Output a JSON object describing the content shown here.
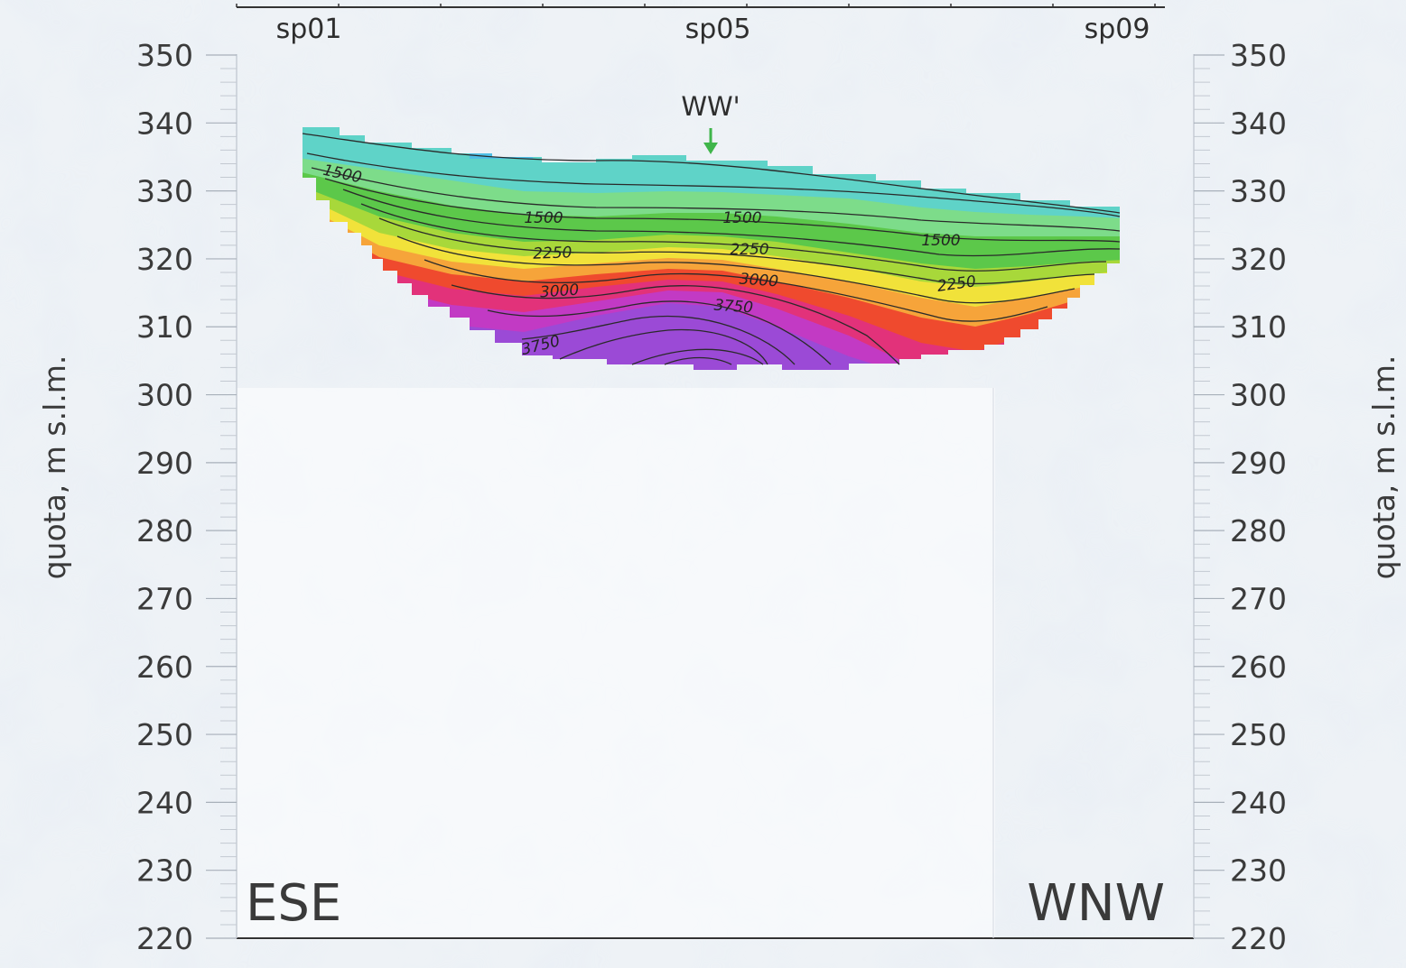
{
  "chart_data": {
    "type": "heatmap",
    "description_units": "velocity contours",
    "ylabel_left": "quota, m s.l.m.",
    "ylabel_right": "quota, m s.l.m.",
    "ylim": [
      220,
      350
    ],
    "yticks": [
      350,
      340,
      330,
      320,
      310,
      300,
      290,
      280,
      270,
      260,
      250,
      240,
      230,
      220
    ],
    "ytick_labels": [
      "350",
      "340",
      "330",
      "320",
      "310",
      "300",
      "290",
      "280",
      "270",
      "260",
      "250",
      "240",
      "230",
      "220"
    ],
    "stations": [
      "sp01",
      "sp05",
      "sp09"
    ],
    "marker": {
      "label": "WW'",
      "color": "#3fb54a"
    },
    "direction_left": "ESE",
    "direction_right": "WNW",
    "contour_levels": [
      1500,
      2250,
      3000,
      3750
    ],
    "contour_labels": [
      {
        "text": "1500",
        "value": 1500
      },
      {
        "text": "1500",
        "value": 1500
      },
      {
        "text": "1500",
        "value": 1500
      },
      {
        "text": "1500",
        "value": 1500
      },
      {
        "text": "2250",
        "value": 2250
      },
      {
        "text": "2250",
        "value": 2250
      },
      {
        "text": "2250",
        "value": 2250
      },
      {
        "text": "3000",
        "value": 3000
      },
      {
        "text": "3000",
        "value": 3000
      },
      {
        "text": "3750",
        "value": 3750
      },
      {
        "text": "3750",
        "value": 3750
      }
    ],
    "color_bands": [
      "#5fd3c8",
      "#7ddc8a",
      "#5cc84a",
      "#a8d83a",
      "#f1e23a",
      "#f6a43a",
      "#ef4a2e",
      "#e2327a",
      "#c23ac4",
      "#9b4ad6"
    ]
  }
}
